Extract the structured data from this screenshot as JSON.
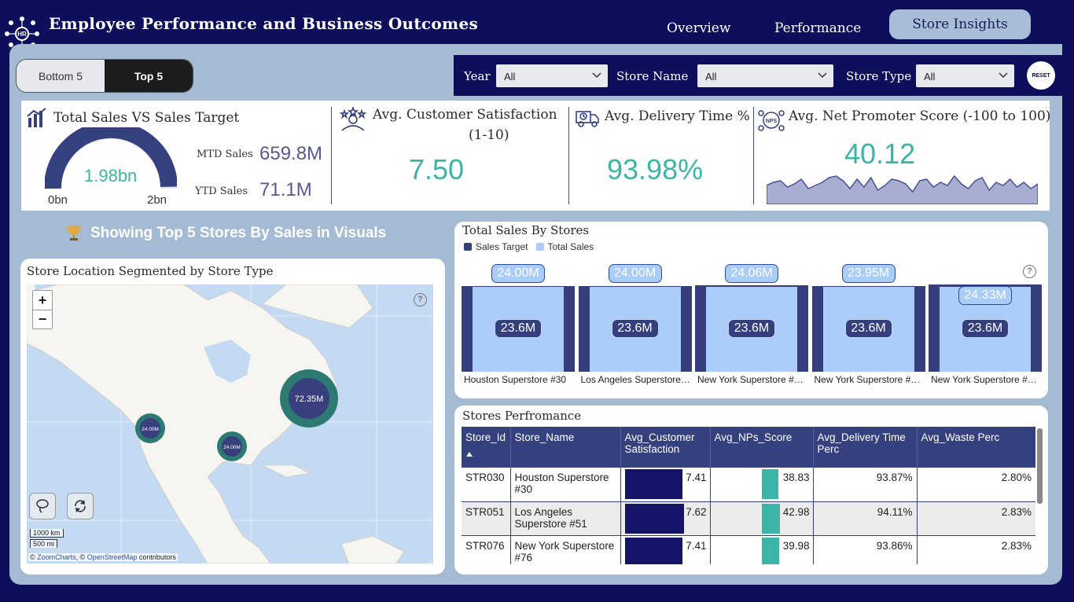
{
  "header": {
    "title": "Employee Performance and Business Outcomes",
    "logo_text": "HR",
    "nav": [
      "Overview",
      "Performance",
      "Store Insights"
    ]
  },
  "toggle": {
    "bottom_label": "Bottom 5",
    "top_label": "Top 5"
  },
  "filters": {
    "year_label": "Year",
    "year_value": "All",
    "store_name_label": "Store Name",
    "store_name_value": "All",
    "store_type_label": "Store Type",
    "store_type_value": "All",
    "reset_label": "RESET"
  },
  "kpis": {
    "sales_title": "Total Sales VS  Sales Target",
    "gauge_value": "1.98bn",
    "gauge_fraction": 0.99,
    "gauge_min": "0bn",
    "gauge_max": "2bn",
    "mtd_label": "MTD Sales",
    "mtd_value": "659.8M",
    "ytd_label": "YTD Sales",
    "ytd_value": "71.1M",
    "csat_title": "Avg. Customer Satisfaction",
    "csat_sub": "(1-10)",
    "csat_value": "7.50",
    "delivery_title": "Avg. Delivery Time %",
    "delivery_value": "93.98%",
    "nps_title": "Avg. Net Promoter Score (-100 to 100)",
    "nps_value": "40.12",
    "nps_icon_text": "NPS"
  },
  "showing_text": "Showing Top 5 Stores By Sales in Visuals",
  "map": {
    "title": "Store Location Segmented by Store Type",
    "bubbles": [
      "72.35M",
      "24.00M",
      "24.00M"
    ],
    "zoom_in": "+",
    "zoom_out": "−",
    "scale_km": "1000 km",
    "scale_mi": "500 mi",
    "credit_prefix": "© ",
    "credit_link1": "ZoomCharts",
    "credit_mid": ", © ",
    "credit_link2": "OpenStreetMap",
    "credit_suffix": " contributors"
  },
  "bar_chart": {
    "title": "Total Sales By Stores",
    "legend": [
      "Sales Target",
      "Total Sales"
    ],
    "colors": {
      "target": "#363f7e",
      "sales": "#abcdf9"
    }
  },
  "chart_data": {
    "type": "bar",
    "title": "Total Sales By Stores",
    "categories": [
      "Houston Superstore #30",
      "Los Angeles Superstore…",
      "New York Superstore #…",
      "New York Superstore #…",
      "New York Superstore #…"
    ],
    "series": [
      {
        "name": "Sales Target",
        "values": [
          24.0,
          24.0,
          24.06,
          23.95,
          24.33
        ],
        "labels": [
          "24.00M",
          "24.00M",
          "24.06M",
          "23.95M",
          "24.33M"
        ]
      },
      {
        "name": "Total Sales",
        "values": [
          23.6,
          23.6,
          23.6,
          23.6,
          23.6
        ],
        "labels": [
          "23.6M",
          "23.6M",
          "23.6M",
          "23.6M",
          "23.6M"
        ]
      }
    ],
    "legend_position": "top-left"
  },
  "table": {
    "title": "Stores Perfromance",
    "headers": [
      "Store_Id",
      "Store_Name",
      "Avg_Customer Satisfaction",
      "Avg_NPs_Score",
      "Avg_Delivery Time Perc",
      "Avg_Waste Perc"
    ],
    "rows": [
      {
        "id": "STR030",
        "name": "Houston Superstore #30",
        "csat": "7.41",
        "csat_val": 7.41,
        "nps": "38.83",
        "nps_val": 38.83,
        "delivery": "93.87%",
        "waste": "2.80%"
      },
      {
        "id": "STR051",
        "name": "Los Angeles Superstore #51",
        "csat": "7.62",
        "csat_val": 7.62,
        "nps": "42.98",
        "nps_val": 42.98,
        "delivery": "94.11%",
        "waste": "2.83%"
      },
      {
        "id": "STR076",
        "name": "New York Superstore #76",
        "csat": "7.41",
        "csat_val": 7.41,
        "nps": "39.98",
        "nps_val": 39.98,
        "delivery": "93.86%",
        "waste": "2.83%"
      }
    ]
  },
  "help_glyph": "?"
}
